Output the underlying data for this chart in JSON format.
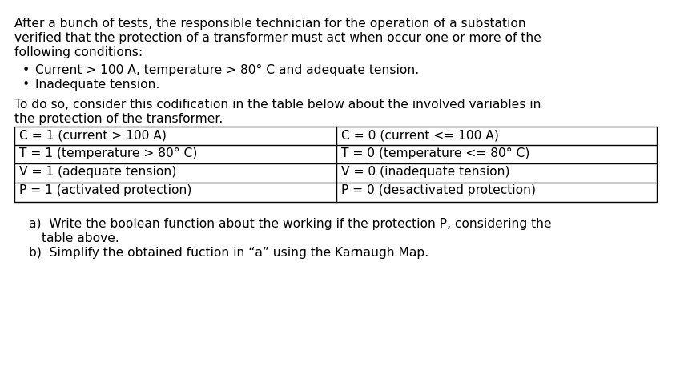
{
  "background_color": "#ffffff",
  "figsize": [
    8.59,
    4.88
  ],
  "dpi": 100,
  "font_size": 11.2,
  "font_family": "DejaVu Sans",
  "text_color": "#000000",
  "table_border_color": "#000000",
  "table_left": [
    "C = 1 (current > 100 A)",
    "T = 1 (temperature > 80° C)",
    "V = 1 (adequate tension)",
    "P = 1 (activated protection)"
  ],
  "table_right": [
    "C = 0 (current <= 100 A)",
    "T = 0 (temperature <= 80° C)",
    "V = 0 (inadequate tension)",
    "P = 0 (desactivated protection)"
  ]
}
